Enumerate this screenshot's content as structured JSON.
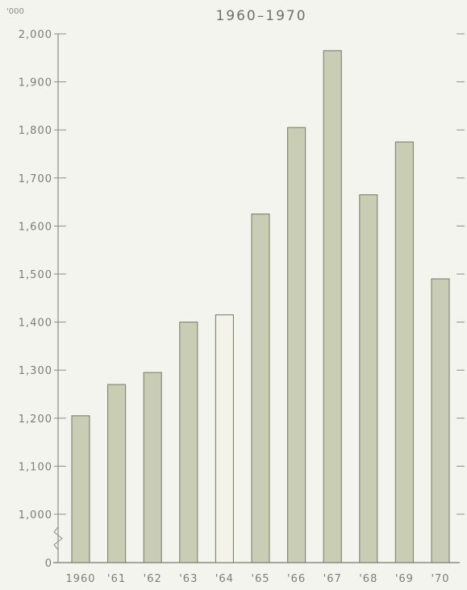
{
  "chart_data": {
    "type": "bar",
    "subtitle": "1960–1970",
    "unit_label": "'000",
    "categories": [
      "1960",
      "'61",
      "'62",
      "'63",
      "'64",
      "'65",
      "'66",
      "'67",
      "'68",
      "'69",
      "'70"
    ],
    "values": [
      1205,
      1270,
      1295,
      1400,
      1415,
      1625,
      1805,
      1965,
      1665,
      1775,
      1490
    ],
    "y_ticks": [
      "0",
      "1,000",
      "1,100",
      "1,200",
      "1,300",
      "1,400",
      "1,500",
      "1,600",
      "1,700",
      "1,800",
      "1,900",
      "2,000"
    ],
    "ylim": [
      1000,
      2000
    ],
    "axis_break": true,
    "grid": false,
    "colors": {
      "bar": "#c9cdb3",
      "bar_highlight": "#f3f3ea",
      "bar_stroke": "#7d8270",
      "axis": "#8c8e84"
    },
    "highlight_category": "'64"
  }
}
